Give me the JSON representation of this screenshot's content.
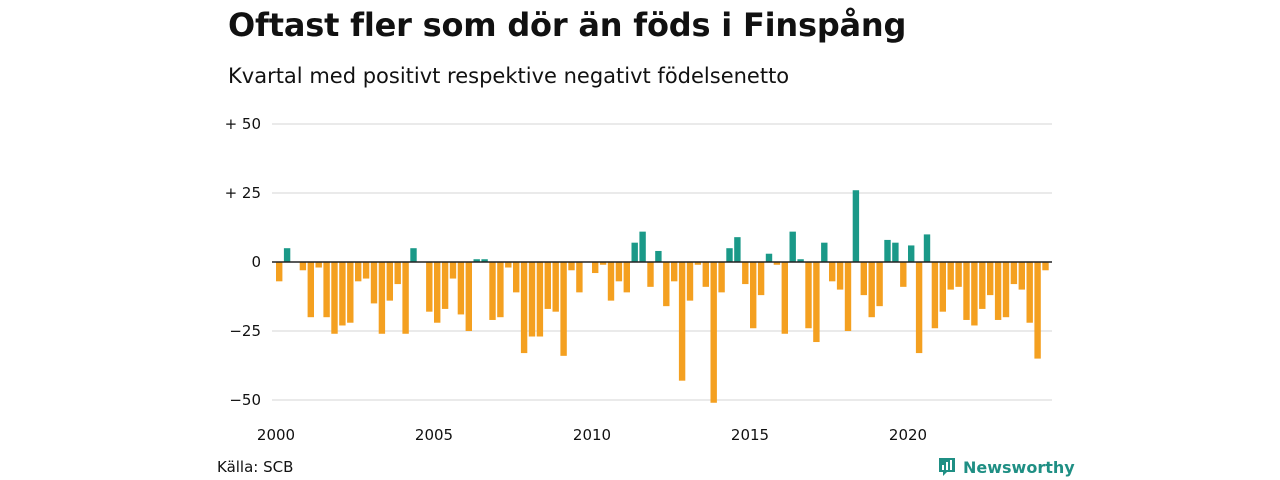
{
  "title": "Oftast fler som dör än föds i Finspång",
  "subtitle": "Kvartal med positivt respektive negativt födelsenetto",
  "source": "Källa: SCB",
  "brand": {
    "name": "Newsworthy",
    "icon": "newsworthy-logo-icon"
  },
  "colors": {
    "positive": "#1a9988",
    "negative": "#f4a020",
    "grid": "#dddddd",
    "axis": "#222222"
  },
  "chart_data": {
    "type": "bar",
    "title": "Oftast fler som dör än föds i Finspång",
    "subtitle": "Kvartal med positivt respektive negativt födelsenetto",
    "x_start_year": 2000,
    "periods_per_year": 4,
    "x_ticks": [
      "2000",
      "2005",
      "2010",
      "2015",
      "2020"
    ],
    "y_ticks": [
      {
        "value": 50,
        "label": "+ 50"
      },
      {
        "value": 25,
        "label": "+ 25"
      },
      {
        "value": 0,
        "label": "0"
      },
      {
        "value": -25,
        "label": "−25"
      },
      {
        "value": -50,
        "label": "−50"
      }
    ],
    "ylim": [
      -50,
      50
    ],
    "grid": true,
    "values": [
      -7,
      5,
      0,
      -3,
      -20,
      -2,
      -20,
      -26,
      -23,
      -22,
      -7,
      -6,
      -15,
      -26,
      -14,
      -8,
      -26,
      5,
      0,
      -18,
      -22,
      -17,
      -6,
      -19,
      -25,
      1,
      1,
      -21,
      -20,
      -2,
      -11,
      -33,
      -27,
      -27,
      -17,
      -18,
      -34,
      -3,
      -11,
      0,
      -4,
      -1,
      -14,
      -7,
      -11,
      7,
      11,
      -9,
      4,
      -16,
      -7,
      -43,
      -14,
      -1,
      -9,
      -51,
      -11,
      5,
      9,
      -8,
      -24,
      -12,
      3,
      -1,
      -26,
      11,
      1,
      -24,
      -29,
      7,
      -7,
      -10,
      -25,
      26,
      -12,
      -20,
      -16,
      8,
      7,
      -9,
      6,
      -33,
      10,
      -24,
      -18,
      -10,
      -9,
      -21,
      -23,
      -17,
      -12,
      -21,
      -20,
      -8,
      -10,
      -22,
      -35,
      -3
    ]
  }
}
